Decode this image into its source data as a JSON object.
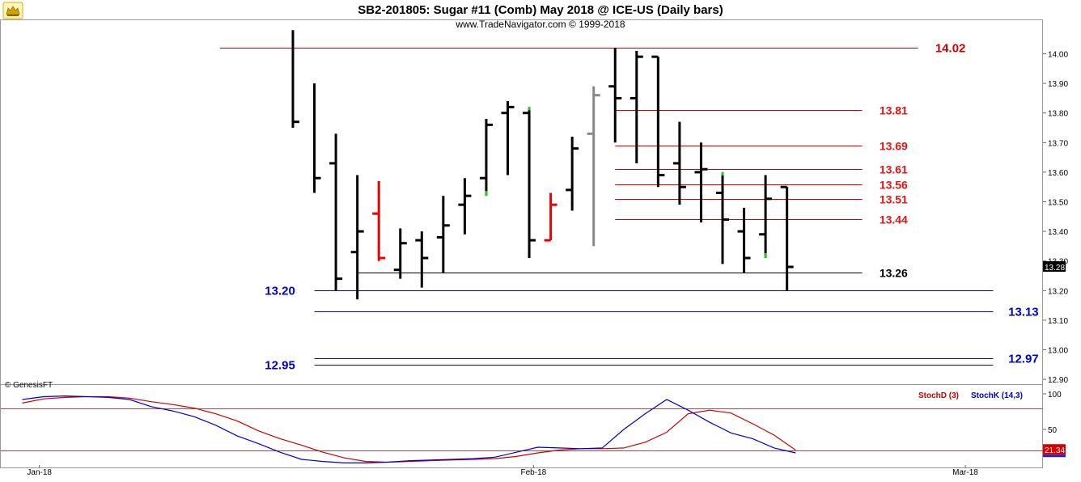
{
  "header": {
    "title": "SB2-201805:  Sugar #11 (Comb) May 2018 @ ICE-US  (Daily bars)",
    "subtitle": "www.TradeNavigator.com © 1999-2018"
  },
  "copyright": "© GenesisFT",
  "logo_icon": "bull-icon",
  "colors": {
    "bar_default": "#000000",
    "bar_down": "#ee0000",
    "bar_gray": "#888888",
    "bar_up_accent": "#22cc22",
    "red_level": "#cc0000",
    "red_label": "#ee1111",
    "blue_level": "#0000cc",
    "stoch_d": "#cc0000",
    "stoch_k": "#0000cc"
  },
  "chart_data": [
    {
      "type": "ohlc",
      "yticks": [
        "14.00",
        "13.90",
        "13.80",
        "13.70",
        "13.60",
        "13.50",
        "13.40",
        "13.30",
        "13.20",
        "13.10",
        "13.00",
        "12.90"
      ],
      "ylim": [
        12.88,
        14.08
      ],
      "last_price": "13.28",
      "xticks": [
        {
          "label": "Jan-18",
          "index": -11.8
        },
        {
          "label": "Feb-18",
          "index": 11.2
        },
        {
          "label": "Mar-18",
          "index": 31.3
        }
      ],
      "bars": [
        {
          "i": 0,
          "o": null,
          "h": 14.08,
          "l": 13.75,
          "c": 13.77,
          "color": "black"
        },
        {
          "i": 1,
          "o": null,
          "h": 13.9,
          "l": 13.53,
          "c": 13.58,
          "color": "black"
        },
        {
          "i": 2,
          "o": 13.63,
          "h": 13.73,
          "l": 13.2,
          "c": 13.24,
          "color": "black"
        },
        {
          "i": 3,
          "o": 13.33,
          "h": 13.59,
          "l": 13.17,
          "c": 13.4,
          "color": "black"
        },
        {
          "i": 4,
          "o": 13.46,
          "h": 13.57,
          "l": 13.3,
          "c": 13.31,
          "color": "red"
        },
        {
          "i": 5,
          "o": 13.27,
          "h": 13.41,
          "l": 13.24,
          "c": 13.36,
          "color": "black"
        },
        {
          "i": 6,
          "o": 13.37,
          "h": 13.4,
          "l": 13.21,
          "c": 13.31,
          "color": "black"
        },
        {
          "i": 7,
          "o": 13.38,
          "h": 13.52,
          "l": 13.26,
          "c": 13.42,
          "color": "black"
        },
        {
          "i": 8,
          "o": 13.49,
          "h": 13.58,
          "l": 13.39,
          "c": 13.52,
          "color": "black"
        },
        {
          "i": 9,
          "o": 13.58,
          "h": 13.78,
          "l": 13.52,
          "c": 13.76,
          "color": "black",
          "accent": "low"
        },
        {
          "i": 10,
          "o": 13.8,
          "h": 13.84,
          "l": 13.59,
          "c": 13.82,
          "color": "black"
        },
        {
          "i": 11,
          "o": 13.8,
          "h": 13.82,
          "l": 13.31,
          "c": 13.37,
          "color": "black",
          "accent": "high"
        },
        {
          "i": 12,
          "o": 13.37,
          "h": 13.53,
          "l": 13.37,
          "c": 13.49,
          "color": "red"
        },
        {
          "i": 13,
          "o": 13.54,
          "h": 13.72,
          "l": 13.47,
          "c": 13.68,
          "color": "black"
        },
        {
          "i": 14,
          "o": 13.73,
          "h": 13.89,
          "l": 13.35,
          "c": 13.86,
          "color": "gray"
        },
        {
          "i": 15,
          "o": 13.89,
          "h": 14.02,
          "l": 13.7,
          "c": 13.85,
          "color": "black"
        },
        {
          "i": 16,
          "o": 13.85,
          "h": 14.01,
          "l": 13.63,
          "c": 13.99,
          "color": "black"
        },
        {
          "i": 17,
          "o": 13.99,
          "h": 13.99,
          "l": 13.55,
          "c": 13.59,
          "color": "black"
        },
        {
          "i": 18,
          "o": 13.63,
          "h": 13.77,
          "l": 13.49,
          "c": 13.55,
          "color": "black"
        },
        {
          "i": 19,
          "o": 13.6,
          "h": 13.7,
          "l": 13.43,
          "c": 13.61,
          "color": "black"
        },
        {
          "i": 20,
          "o": 13.53,
          "h": 13.6,
          "l": 13.29,
          "c": 13.44,
          "color": "black",
          "accent": "high"
        },
        {
          "i": 21,
          "o": 13.4,
          "h": 13.48,
          "l": 13.26,
          "c": 13.31,
          "color": "black"
        },
        {
          "i": 22,
          "o": 13.39,
          "h": 13.59,
          "l": 13.31,
          "c": 13.51,
          "color": "black",
          "accent": "low"
        },
        {
          "i": 23,
          "o": 13.55,
          "h": 13.55,
          "l": 13.2,
          "c": 13.28,
          "color": "black"
        }
      ],
      "levels": [
        {
          "label": "14.02",
          "value": 14.02,
          "color": "red_level",
          "from": -3.4,
          "to": 29.1,
          "label_index": 29.9,
          "label_size": "large"
        },
        {
          "label": "13.81",
          "value": 13.81,
          "color": "red_level",
          "from": 15.0,
          "to": 26.5,
          "label_index": 27.3,
          "label_size": "small"
        },
        {
          "label": "13.69",
          "value": 13.69,
          "color": "red_level",
          "from": 15.0,
          "to": 26.5,
          "label_index": 27.3,
          "label_size": "small"
        },
        {
          "label": "13.61",
          "value": 13.61,
          "color": "red_level",
          "from": 15.0,
          "to": 26.5,
          "label_index": 27.3,
          "label_size": "small"
        },
        {
          "label": "13.56",
          "value": 13.56,
          "color": "red_level",
          "from": 15.0,
          "to": 26.5,
          "label_index": 27.3,
          "label_size": "small"
        },
        {
          "label": "13.51",
          "value": 13.51,
          "color": "red_level",
          "from": 15.0,
          "to": 26.5,
          "label_index": 27.3,
          "label_size": "small"
        },
        {
          "label": "13.44",
          "value": 13.44,
          "color": "red_level",
          "from": 15.0,
          "to": 26.5,
          "label_index": 27.3,
          "label_size": "small"
        },
        {
          "label": "13.26",
          "value": 13.26,
          "color": "bar_default",
          "from": 3.0,
          "to": 26.5,
          "label_index": 27.3,
          "label_size": "small"
        },
        {
          "label": "13.20",
          "value": 13.2,
          "color": "blue_level",
          "from": 1.0,
          "to": 32.6,
          "label_index": -0.6,
          "label_size": "large",
          "label_side": "left"
        },
        {
          "label": "13.13",
          "value": 13.13,
          "color": "blue_level",
          "from": 1.0,
          "to": 32.6,
          "label_index": 33.3,
          "label_size": "large"
        },
        {
          "label": "12.97",
          "value": 12.97,
          "color": "blue_level",
          "from": 1.0,
          "to": 32.6,
          "label_index": 33.3,
          "label_size": "large"
        },
        {
          "label": "12.95",
          "value": 12.95,
          "color": "blue_level",
          "from": 1.0,
          "to": 32.6,
          "label_index": -0.6,
          "label_size": "large",
          "label_side": "left"
        }
      ]
    },
    {
      "type": "line",
      "legend": [
        {
          "name": "StochD (3)",
          "color": "stoch_d"
        },
        {
          "name": "StochK (14,3)",
          "color": "stoch_k"
        }
      ],
      "yticks": [
        "100",
        "50"
      ],
      "ylim": [
        0,
        100
      ],
      "levels": [
        80,
        20
      ],
      "last_value": "21.34",
      "x": [
        -12.6,
        -11.6,
        -10.6,
        -9.6,
        -8.6,
        -7.6,
        -6.6,
        -5.6,
        -4.6,
        -3.6,
        -2.6,
        -1.6,
        -0.6,
        0.4,
        1.4,
        2.4,
        3.4,
        4.4,
        5.4,
        6.4,
        7.4,
        8.4,
        9.4,
        10.4,
        11.4,
        12.4,
        13.4,
        14.4,
        15.4,
        16.4,
        17.4,
        18.4,
        19.4,
        20.4,
        21.4,
        22.4,
        23.4
      ],
      "series": [
        {
          "name": "StochD (3)",
          "values": [
            87,
            93,
            95,
            96,
            96,
            94,
            89,
            85,
            80,
            72,
            62,
            48,
            37,
            28,
            18,
            10,
            5,
            4,
            5,
            6,
            7,
            8,
            9,
            12,
            17,
            21,
            23,
            23,
            24,
            32,
            46,
            72,
            77,
            73,
            58,
            42,
            21
          ]
        },
        {
          "name": "StochK (14,3)",
          "values": [
            92,
            96,
            97,
            96,
            95,
            92,
            82,
            76,
            68,
            56,
            41,
            30,
            18,
            8,
            5,
            3,
            3,
            4,
            6,
            7,
            8,
            9,
            11,
            18,
            25,
            24,
            23,
            24,
            50,
            72,
            92,
            77,
            60,
            45,
            37,
            24,
            17
          ]
        }
      ]
    }
  ]
}
